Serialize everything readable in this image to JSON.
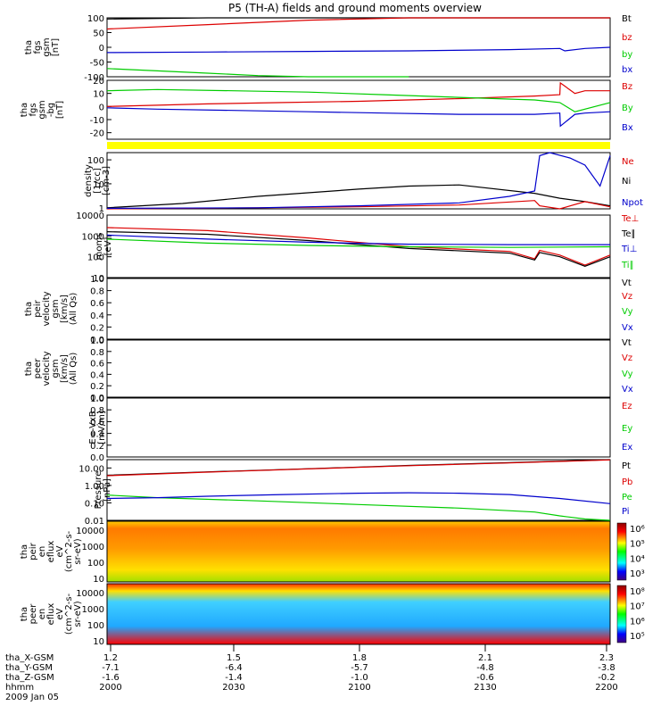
{
  "title": "P5 (TH-A) fields and ground moments overview",
  "colors": {
    "black": "#000000",
    "red": "#dd0000",
    "green": "#00cc00",
    "blue": "#0000cc",
    "yellow_bar": "#ffff00"
  },
  "chart_data": [
    {
      "type": "line",
      "ylabel": [
        "tha",
        "fgs",
        "gsm",
        "[nT]"
      ],
      "ylim": [
        -100,
        100
      ],
      "yticks": [
        "100",
        "50",
        "0",
        "-50",
        "-100"
      ],
      "legend": [
        {
          "label": "Bt",
          "color": "black"
        },
        {
          "label": "bz",
          "color": "red"
        },
        {
          "label": "by",
          "color": "green"
        },
        {
          "label": "bx",
          "color": "blue"
        }
      ],
      "series": [
        {
          "name": "Bt",
          "x": [
            0,
            0.2,
            0.4,
            0.6,
            0.8,
            1.0
          ],
          "y": [
            96,
            102,
            108,
            114,
            120,
            126
          ]
        },
        {
          "name": "bz",
          "x": [
            0,
            0.2,
            0.4,
            0.6,
            0.8,
            1.0
          ],
          "y": [
            62,
            77,
            92,
            107,
            120,
            130
          ]
        },
        {
          "name": "by",
          "x": [
            0,
            0.1,
            0.2,
            0.3,
            0.4,
            0.5,
            0.6
          ],
          "y": [
            -72,
            -80,
            -88,
            -96,
            -104,
            -112,
            -120
          ]
        },
        {
          "name": "bx",
          "x": [
            0,
            0.2,
            0.4,
            0.6,
            0.8,
            0.9,
            0.91,
            0.95,
            1.0
          ],
          "y": [
            -18,
            -16,
            -14,
            -12,
            -8,
            -4,
            -12,
            -4,
            0
          ]
        }
      ]
    },
    {
      "type": "line",
      "ylabel": [
        "tha",
        "fgs",
        "gsm",
        "-bg",
        "[nT]"
      ],
      "ylim": [
        -25,
        20
      ],
      "yticks": [
        "20",
        "10",
        "0",
        "-10",
        "-20"
      ],
      "legend": [
        {
          "label": "Bz",
          "color": "red"
        },
        {
          "label": "By",
          "color": "green"
        },
        {
          "label": "Bx",
          "color": "blue"
        }
      ],
      "series": [
        {
          "name": "Bz",
          "x": [
            0,
            0.1,
            0.2,
            0.35,
            0.5,
            0.7,
            0.85,
            0.9,
            0.901,
            0.93,
            0.95,
            1.0
          ],
          "y": [
            0,
            1,
            2,
            3,
            4,
            6,
            8,
            9,
            18,
            10,
            12,
            12
          ]
        },
        {
          "name": "By",
          "x": [
            0,
            0.1,
            0.25,
            0.4,
            0.55,
            0.7,
            0.85,
            0.9,
            0.93,
            1.0
          ],
          "y": [
            12,
            13,
            12,
            11,
            9,
            7,
            5,
            3,
            -4,
            3
          ]
        },
        {
          "name": "Bx",
          "x": [
            0,
            0.1,
            0.25,
            0.4,
            0.55,
            0.7,
            0.85,
            0.9,
            0.901,
            0.93,
            0.95,
            1.0
          ],
          "y": [
            -1,
            -2,
            -3,
            -4,
            -5,
            -6,
            -6,
            -5,
            -15,
            -6,
            -5,
            -4
          ]
        }
      ]
    },
    {
      "type": "line",
      "ylabel": [
        "density",
        "[1/cc]",
        "[cm-3]"
      ],
      "yscale": "log",
      "ylim": [
        0.9,
        200
      ],
      "yticks": [
        "100",
        "10",
        "1"
      ],
      "legend": [
        {
          "label": "Ne",
          "color": "red"
        },
        {
          "label": "Ni",
          "color": "black"
        },
        {
          "label": "Npot",
          "color": "blue"
        }
      ],
      "series": [
        {
          "name": "Ni",
          "x": [
            0,
            0.15,
            0.3,
            0.5,
            0.6,
            0.7,
            0.85,
            0.9,
            0.95,
            1.0
          ],
          "y": [
            1.0,
            1.5,
            3,
            6,
            8,
            9,
            4,
            2.5,
            1.8,
            1.2
          ]
        },
        {
          "name": "Ne",
          "x": [
            0,
            0.3,
            0.5,
            0.7,
            0.85,
            0.86,
            0.9,
            0.95,
            1.0
          ],
          "y": [
            0.9,
            1.0,
            1.1,
            1.3,
            2.0,
            1.2,
            0.9,
            1.8,
            1.1
          ]
        },
        {
          "name": "Npot",
          "x": [
            0,
            0.3,
            0.5,
            0.7,
            0.8,
            0.85,
            0.86,
            0.88,
            0.92,
            0.95,
            0.98,
            1.0
          ],
          "y": [
            0.95,
            1.0,
            1.2,
            1.6,
            3,
            5,
            150,
            250,
            120,
            60,
            8,
            150
          ]
        }
      ]
    },
    {
      "type": "line",
      "ylabel": [
        "moms",
        "[eV]"
      ],
      "yscale": "log",
      "ylim": [
        10,
        10000
      ],
      "yticks": [
        "10000",
        "1000",
        "100",
        "10"
      ],
      "legend": [
        {
          "label": "Te⊥",
          "color": "red"
        },
        {
          "label": "Te∥",
          "color": "black"
        },
        {
          "label": "Ti⊥",
          "color": "blue"
        },
        {
          "label": "Ti∥",
          "color": "green"
        }
      ],
      "series": [
        {
          "name": "Te⊥",
          "x": [
            0,
            0.2,
            0.4,
            0.6,
            0.8,
            0.85,
            0.86,
            0.9,
            0.95,
            1.0
          ],
          "y": [
            2500,
            1800,
            800,
            300,
            180,
            80,
            200,
            120,
            40,
            120
          ]
        },
        {
          "name": "Te∥",
          "x": [
            0,
            0.2,
            0.4,
            0.6,
            0.8,
            0.85,
            0.86,
            0.9,
            0.95,
            1.0
          ],
          "y": [
            1600,
            1200,
            600,
            250,
            150,
            70,
            160,
            100,
            35,
            100
          ]
        },
        {
          "name": "Ti⊥",
          "x": [
            0,
            0.2,
            0.4,
            0.6,
            0.8,
            1.0
          ],
          "y": [
            1100,
            700,
            500,
            400,
            380,
            380
          ]
        },
        {
          "name": "Ti∥",
          "x": [
            0,
            0.2,
            0.4,
            0.6,
            0.8,
            1.0
          ],
          "y": [
            700,
            450,
            350,
            300,
            280,
            300
          ]
        }
      ]
    },
    {
      "type": "line",
      "ylabel": [
        "tha",
        "peir",
        "velocity",
        "gsm",
        "[km/s]",
        "(All Qs)"
      ],
      "ylim": [
        0,
        1
      ],
      "yticks": [
        "1.0",
        "0.8",
        "0.6",
        "0.4",
        "0.2",
        "0.0"
      ],
      "legend": [
        {
          "label": "Vt",
          "color": "black"
        },
        {
          "label": "Vz",
          "color": "red"
        },
        {
          "label": "Vy",
          "color": "green"
        },
        {
          "label": "Vx",
          "color": "blue"
        }
      ],
      "series": []
    },
    {
      "type": "line",
      "ylabel": [
        "tha",
        "peer",
        "velocity",
        "gsm",
        "[km/s]",
        "(All Qs)"
      ],
      "ylim": [
        0,
        1
      ],
      "yticks": [
        "1.0",
        "0.8",
        "0.6",
        "0.4",
        "0.2",
        "0.0"
      ],
      "legend": [
        {
          "label": "Vt",
          "color": "black"
        },
        {
          "label": "Vz",
          "color": "red"
        },
        {
          "label": "Vy",
          "color": "green"
        },
        {
          "label": "Vx",
          "color": "blue"
        }
      ],
      "series": []
    },
    {
      "type": "line",
      "ylabel": [
        "E=-VxB",
        "[mV/m]"
      ],
      "ylim": [
        0,
        1
      ],
      "yticks": [
        "1.0",
        "0.8",
        "0.6",
        "0.4",
        "0.2",
        "0.0"
      ],
      "legend": [
        {
          "label": "Ez",
          "color": "red"
        },
        {
          "label": "Ey",
          "color": "green"
        },
        {
          "label": "Ex",
          "color": "blue"
        }
      ],
      "series": []
    },
    {
      "type": "line",
      "ylabel": [
        "Pressure",
        "[nPa]"
      ],
      "yscale": "log",
      "ylim": [
        0.01,
        30
      ],
      "yticks": [
        "10.00",
        "1.00",
        "0.10",
        "0.01"
      ],
      "legend": [
        {
          "label": "Pt",
          "color": "black"
        },
        {
          "label": "Pb",
          "color": "red"
        },
        {
          "label": "Pe",
          "color": "green"
        },
        {
          "label": "Pi",
          "color": "blue"
        }
      ],
      "series": [
        {
          "name": "Pt",
          "x": [
            0,
            0.2,
            0.4,
            0.6,
            0.8,
            0.95,
            1.0
          ],
          "y": [
            3.8,
            6,
            9,
            14,
            20,
            27,
            30
          ]
        },
        {
          "name": "Pb",
          "x": [
            0,
            0.2,
            0.4,
            0.6,
            0.8,
            0.95,
            1.0
          ],
          "y": [
            3.6,
            5.8,
            8.8,
            13.5,
            19.5,
            26,
            29
          ]
        },
        {
          "name": "Pe",
          "x": [
            0,
            0.1,
            0.3,
            0.5,
            0.7,
            0.85,
            0.9,
            0.95,
            1.0
          ],
          "y": [
            0.28,
            0.2,
            0.13,
            0.08,
            0.05,
            0.03,
            0.018,
            0.012,
            0.01
          ]
        },
        {
          "name": "Pi",
          "x": [
            0,
            0.1,
            0.2,
            0.35,
            0.5,
            0.6,
            0.7,
            0.8,
            0.9,
            1.0
          ],
          "y": [
            0.18,
            0.2,
            0.24,
            0.3,
            0.36,
            0.38,
            0.36,
            0.3,
            0.18,
            0.09
          ]
        }
      ]
    },
    {
      "type": "heatmap",
      "ylabel": [
        "tha",
        "peir",
        "en",
        "eflux",
        "eV",
        "(cm^2-s-",
        "sr-eV)"
      ],
      "yscale": "log",
      "yticks": [
        "10000",
        "1000",
        "100",
        "10"
      ],
      "colorbar_ticks": [
        "10⁶",
        "10⁵",
        "10⁴",
        "10³"
      ]
    },
    {
      "type": "heatmap",
      "ylabel": [
        "tha",
        "peer",
        "en",
        "eflux",
        "eV",
        "(cm^2-s-",
        "sr-eV)"
      ],
      "yscale": "log",
      "yticks": [
        "10000",
        "1000",
        "100",
        "10"
      ],
      "colorbar_ticks": [
        "10⁸",
        "10⁷",
        "10⁶",
        "10⁵"
      ]
    }
  ],
  "x_axis": {
    "row_labels": [
      "tha_X-GSM",
      "tha_Y-GSM",
      "tha_Z-GSM",
      "hhmm",
      "2009 Jan 05"
    ],
    "columns": [
      {
        "x": "1.2",
        "y": "-7.1",
        "z": "-1.6",
        "t": "2000"
      },
      {
        "x": "1.5",
        "y": "-6.4",
        "z": "-1.4",
        "t": "2030"
      },
      {
        "x": "1.8",
        "y": "-5.7",
        "z": "-1.0",
        "t": "2100"
      },
      {
        "x": "2.1",
        "y": "-4.8",
        "z": "-0.6",
        "t": "2130"
      },
      {
        "x": "2.3",
        "y": "-3.8",
        "z": "-0.2",
        "t": "2200"
      }
    ]
  }
}
